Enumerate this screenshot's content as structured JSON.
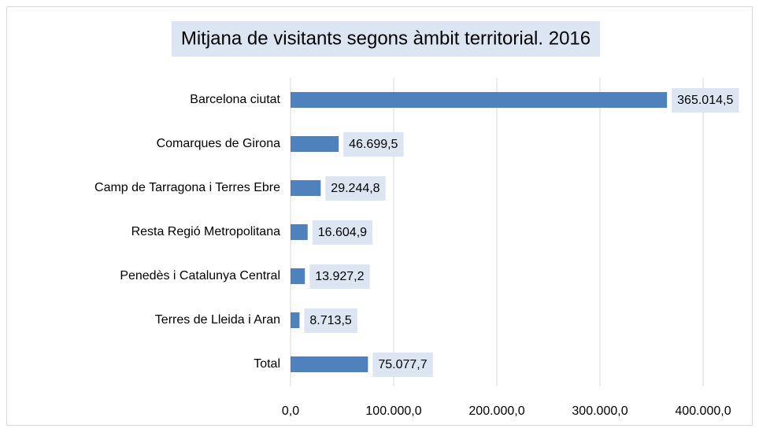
{
  "chart_data": {
    "type": "bar",
    "orientation": "horizontal",
    "title": "Mitjana de visitants segons àmbit territorial. 2016",
    "categories": [
      "Barcelona ciutat",
      "Comarques de Girona",
      "Camp de Tarragona i Terres Ebre",
      "Resta Regió Metropolitana",
      "Penedès i Catalunya Central",
      "Terres de Lleida i Aran",
      "Total"
    ],
    "values": [
      365014.5,
      46699.5,
      29244.8,
      16604.9,
      13927.2,
      8713.5,
      75077.7
    ],
    "value_labels": [
      "365.014,5",
      "46.699,5",
      "29.244,8",
      "16.604,9",
      "13.927,2",
      "8.713,5",
      "75.077,7"
    ],
    "color": "#4f81bd",
    "xlim": [
      0,
      400000
    ],
    "xticks": [
      {
        "value": 0,
        "label": "0,0"
      },
      {
        "value": 100000,
        "label": "100.000,0"
      },
      {
        "value": 200000,
        "label": "200.000,0"
      },
      {
        "value": 300000,
        "label": "300.000,0"
      },
      {
        "value": 400000,
        "label": "400.000,0"
      }
    ],
    "grid": true
  }
}
